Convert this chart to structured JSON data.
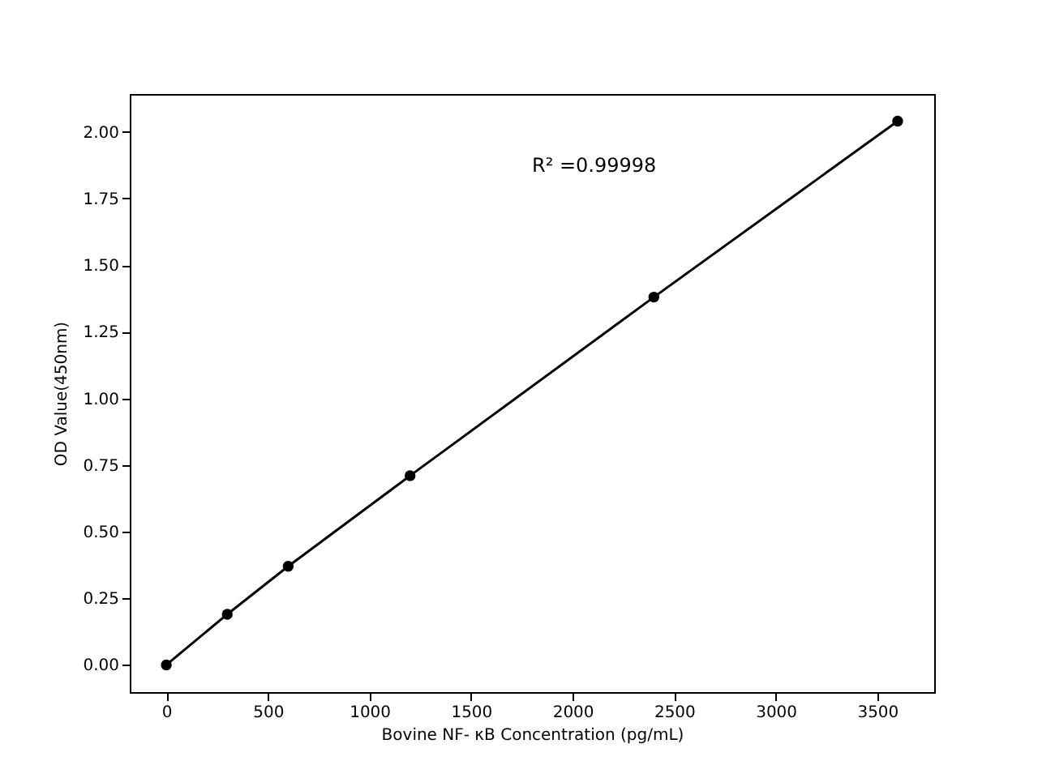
{
  "chart_data": {
    "type": "line",
    "xlabel": "Bovine NF- κB Concentration (pg/mL)",
    "ylabel": "OD Value(450nm)",
    "x": [
      0,
      300,
      600,
      1200,
      2400,
      3600
    ],
    "series": [
      {
        "color": "#000000",
        "values": [
          0.0,
          0.19,
          0.37,
          0.71,
          1.38,
          2.04
        ]
      }
    ],
    "marker": "circle",
    "line_style": "solid",
    "grid": false,
    "xlim": [
      -180,
      3780
    ],
    "ylim": [
      -0.102,
      2.142
    ],
    "xticks": [
      0,
      500,
      1000,
      1500,
      2000,
      2500,
      3000,
      3500
    ],
    "yticks": [
      {
        "value": 0,
        "label": "0.00"
      },
      {
        "value": 0.25,
        "label": "0.25"
      },
      {
        "value": 0.5,
        "label": "0.50"
      },
      {
        "value": 0.75,
        "label": "0.75"
      },
      {
        "value": 1,
        "label": "1.00"
      },
      {
        "value": 1.25,
        "label": "1.25"
      },
      {
        "value": 1.5,
        "label": "1.50"
      },
      {
        "value": 1.75,
        "label": "1.75"
      },
      {
        "value": 2,
        "label": "2.00"
      }
    ],
    "annotations": [
      "R² =0.99998"
    ]
  }
}
